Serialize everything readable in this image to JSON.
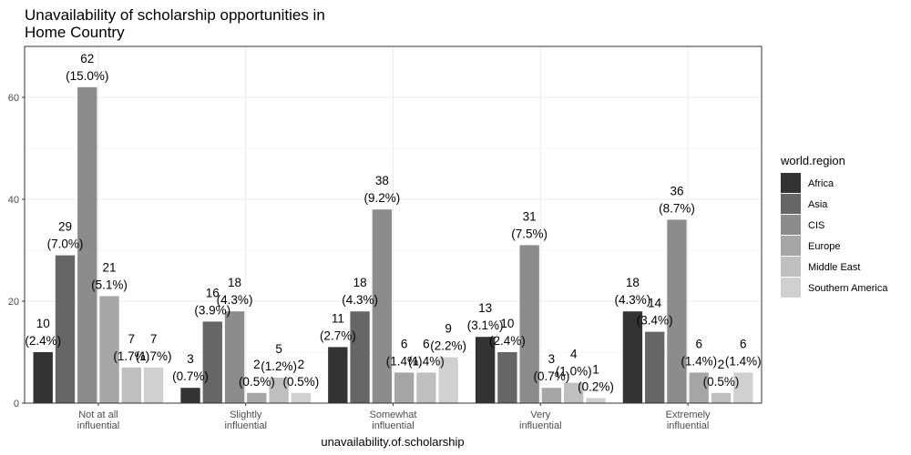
{
  "chart_data": {
    "type": "bar",
    "title_lines": [
      "Unavailability of scholarship opportunities in",
      "Home Country"
    ],
    "xlabel": "unavailability.of.scholarship",
    "ylabel": "",
    "ylim": [
      0,
      70
    ],
    "yticks": [
      0,
      20,
      40,
      60
    ],
    "grid": true,
    "legend_title": "world.region",
    "legend_position": "right",
    "categories": [
      [
        "Not at all",
        "influential"
      ],
      [
        "Slightly",
        "influential"
      ],
      [
        "Somewhat",
        "influential"
      ],
      [
        "Very",
        "influential"
      ],
      [
        "Extremely",
        "influential"
      ]
    ],
    "series": [
      {
        "name": "Africa",
        "color": "#333333",
        "values": [
          10,
          3,
          11,
          13,
          18
        ],
        "labels": [
          "(2.4%)",
          "(0.7%)",
          "(2.7%)",
          "(3.1%)",
          "(4.3%)"
        ]
      },
      {
        "name": "Asia",
        "color": "#666666",
        "values": [
          29,
          16,
          18,
          10,
          14
        ],
        "labels": [
          "(7.0%)",
          "(3.9%)",
          "(4.3%)",
          "(2.4%)",
          "(3.4%)"
        ]
      },
      {
        "name": "CIS",
        "color": "#8c8c8c",
        "values": [
          62,
          18,
          38,
          31,
          36
        ],
        "labels": [
          "(15.0%)",
          "(4.3%)",
          "(9.2%)",
          "(7.5%)",
          "(8.7%)"
        ]
      },
      {
        "name": "Europe",
        "color": "#a6a6a6",
        "values": [
          21,
          2,
          6,
          3,
          6
        ],
        "labels": [
          "(5.1%)",
          "(0.5%)",
          "(1.4%)",
          "(0.7%)",
          "(1.4%)"
        ]
      },
      {
        "name": "Middle East",
        "color": "#bfbfbf",
        "values": [
          7,
          5,
          6,
          4,
          2
        ],
        "labels": [
          "(1.7%)",
          "(1.2%)",
          "(1.4%)",
          "(1.0%)",
          "(0.5%)"
        ]
      },
      {
        "name": "Southern America",
        "color": "#d0d0d0",
        "values": [
          7,
          2,
          9,
          1,
          6
        ],
        "labels": [
          "(1.7%)",
          "(0.5%)",
          "(2.2%)",
          "(0.2%)",
          "(1.4%)"
        ]
      }
    ]
  }
}
